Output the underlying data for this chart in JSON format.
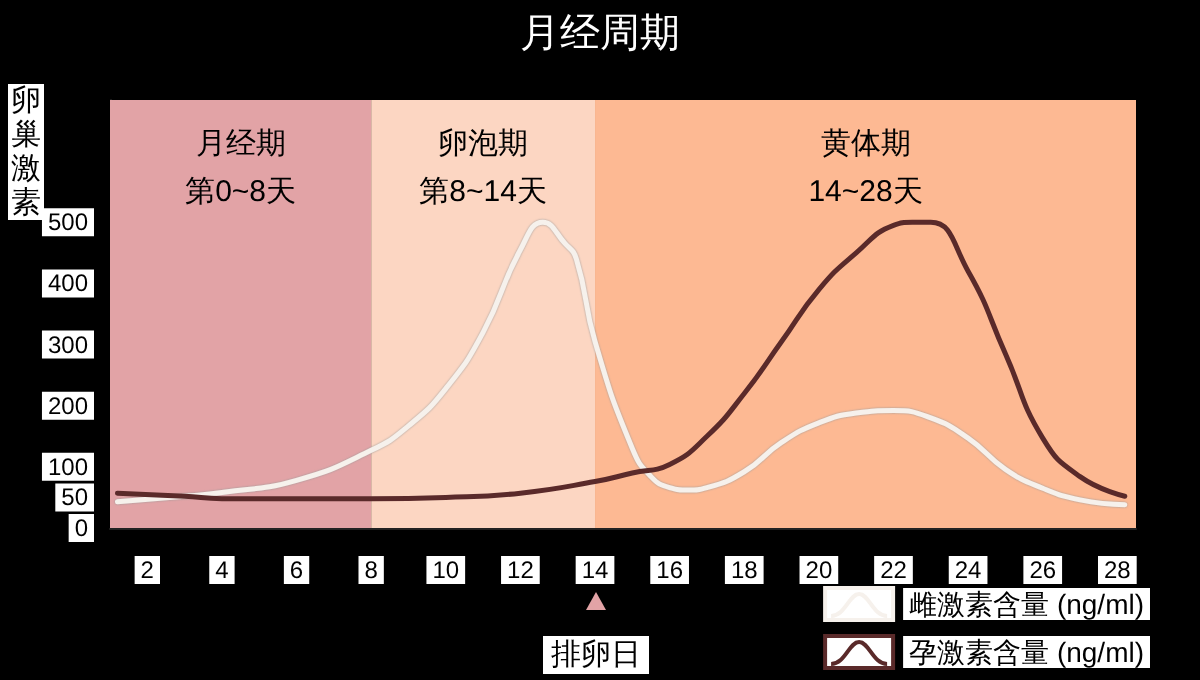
{
  "chart_data": {
    "type": "line",
    "title": "月经周期",
    "ylabel": "卵巢激素",
    "xlim": [
      1,
      28.5
    ],
    "ylim": [
      0,
      700
    ],
    "xticks": [
      2,
      4,
      6,
      8,
      10,
      12,
      14,
      16,
      18,
      20,
      22,
      24,
      26,
      28
    ],
    "yticks": [
      0,
      50,
      100,
      200,
      300,
      400,
      500
    ],
    "grid": false,
    "legend": "bottom right",
    "line_style": "solid",
    "bands": [
      {
        "axis": "x",
        "from": 1,
        "to": 8,
        "label": "月经期第0~8天",
        "color": "#e2a3a6"
      },
      {
        "axis": "x",
        "from": 8,
        "to": 14,
        "label": "卵泡期第8~14天",
        "color": "#fcd6c2"
      },
      {
        "axis": "x",
        "from": 14,
        "to": 28.5,
        "label": "黄体期14~28天",
        "color": "#fdb993"
      }
    ],
    "annotations": [
      "排卵日"
    ],
    "series": [
      {
        "name": "雌激素含量 (ng/ml)",
        "color": "#f6f1ec",
        "x": [
          1.2,
          3,
          4,
          6,
          8,
          9,
          10,
          11,
          12,
          12.6,
          13.2,
          13.5,
          14,
          15,
          15.5,
          16,
          16.5,
          17,
          18,
          19,
          20,
          21,
          22,
          23,
          24,
          25,
          26,
          27,
          28.2
        ],
        "values": [
          43,
          52,
          58,
          78,
          127,
          167,
          228,
          320,
          455,
          500,
          465,
          440,
          305,
          130,
          84,
          66,
          62,
          66,
          92,
          140,
          172,
          188,
          192,
          180,
          147,
          96,
          65,
          46,
          38
        ]
      },
      {
        "name": "孕激素含量 (ng/ml)",
        "color": "#5a2a2a",
        "x": [
          1.2,
          3,
          4,
          6,
          8,
          10,
          12,
          14,
          15,
          16,
          17,
          18,
          19,
          20,
          21,
          22,
          22.5,
          23,
          24,
          25,
          26,
          27,
          28.2
        ],
        "values": [
          57,
          52,
          48,
          48,
          48,
          50,
          57,
          76,
          90,
          104,
          150,
          220,
          305,
          390,
          450,
          495,
          500,
          500,
          420,
          285,
          147,
          84,
          52
        ]
      }
    ]
  }
}
